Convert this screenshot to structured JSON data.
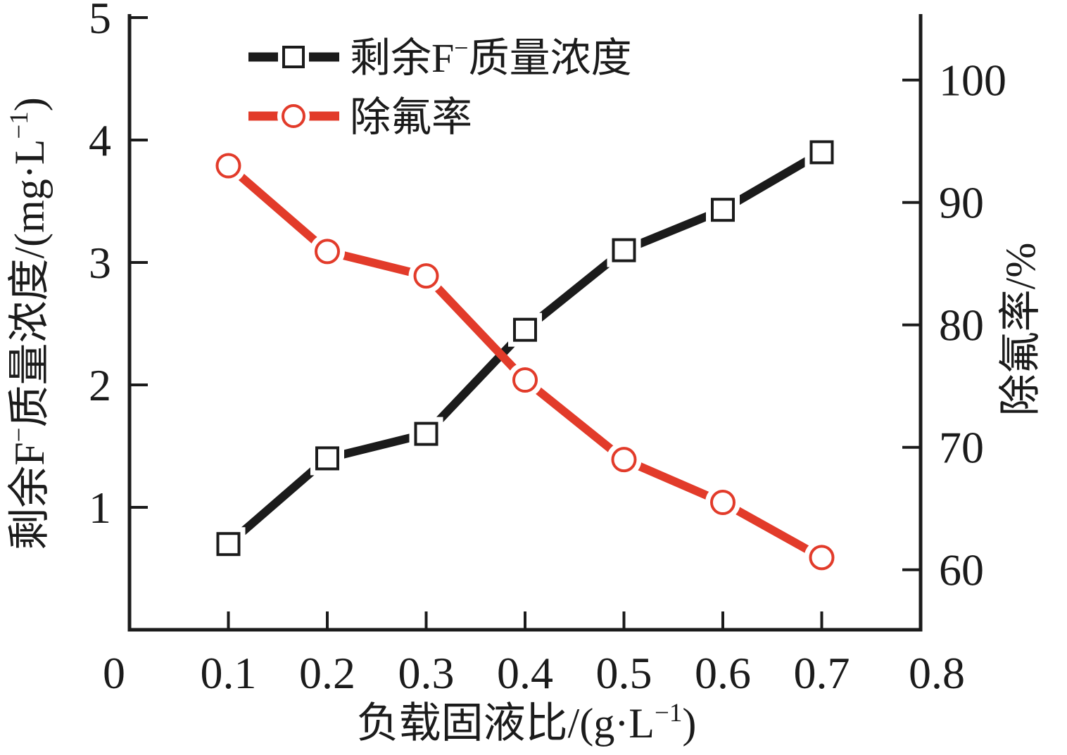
{
  "figure": {
    "background": "#ffffff",
    "black": "#1b1b1b",
    "red": "#e23b2a"
  },
  "legend": {
    "items": [
      {
        "id": "residual_fluoride",
        "label": "剩余F⁻质量浓度",
        "label_parts": [
          {
            "t": "剩余F"
          },
          {
            "t": "−",
            "sup": true
          },
          {
            "t": "质量浓度"
          }
        ],
        "color": "#1b1b1b",
        "marker": "square"
      },
      {
        "id": "fluoride_removal",
        "label": "除氟率",
        "label_parts": [
          {
            "t": "除氟率"
          }
        ],
        "color": "#e23b2a",
        "marker": "circle"
      }
    ]
  },
  "chart_data": {
    "type": "line",
    "x": [
      0.1,
      0.2,
      0.3,
      0.4,
      0.5,
      0.6,
      0.7
    ],
    "series": [
      {
        "id": "residual_fluoride",
        "name": "剩余F⁻质量浓度",
        "axis": "left",
        "color": "#1b1b1b",
        "marker": "square",
        "values": [
          0.7,
          1.4,
          1.6,
          2.45,
          3.1,
          3.43,
          3.9
        ]
      },
      {
        "id": "fluoride_removal",
        "name": "除氟率",
        "axis": "right",
        "color": "#e23b2a",
        "marker": "circle",
        "values": [
          93,
          86,
          84,
          75.5,
          69,
          65.5,
          61
        ]
      }
    ],
    "x_axis": {
      "label": "负载固液比/(g·L⁻¹)",
      "label_parts": [
        {
          "t": "负载固液比/(g·L"
        },
        {
          "t": "−1",
          "sup": true
        },
        {
          "t": ")"
        }
      ],
      "min": 0,
      "max": 0.8,
      "tick_marks": [
        0.1,
        0.2,
        0.3,
        0.4,
        0.5,
        0.6,
        0.7
      ],
      "tick_labels": [
        {
          "v": 0,
          "text": "0"
        },
        {
          "v": 0.1,
          "text": "0.1"
        },
        {
          "v": 0.2,
          "text": "0.2"
        },
        {
          "v": 0.3,
          "text": "0.3"
        },
        {
          "v": 0.4,
          "text": "0.4"
        },
        {
          "v": 0.5,
          "text": "0.5"
        },
        {
          "v": 0.6,
          "text": "0.6"
        },
        {
          "v": 0.7,
          "text": "0.7"
        },
        {
          "v": 0.8,
          "text": "0.8"
        }
      ]
    },
    "left_axis": {
      "label": "剩余F⁻质量浓度/(mg·L⁻¹)",
      "label_parts": [
        {
          "t": "剩余F"
        },
        {
          "t": "−",
          "sup": true
        },
        {
          "t": "质量浓度/(mg·L"
        },
        {
          "t": "−1",
          "sup": true
        },
        {
          "t": ")"
        }
      ],
      "min": 0,
      "max": 5,
      "tick_labels": [
        {
          "v": 1,
          "text": "1"
        },
        {
          "v": 2,
          "text": "2"
        },
        {
          "v": 3,
          "text": "3"
        },
        {
          "v": 4,
          "text": "4"
        },
        {
          "v": 5,
          "text": "5"
        }
      ]
    },
    "right_axis": {
      "label": "除氟率/%",
      "label_parts": [
        {
          "t": "除氟率/%"
        }
      ],
      "min": 55.1,
      "max": 105.1,
      "tick_labels": [
        {
          "v": 60,
          "text": "60"
        },
        {
          "v": 70,
          "text": "70"
        },
        {
          "v": 80,
          "text": "80"
        },
        {
          "v": 90,
          "text": "90"
        },
        {
          "v": 100,
          "text": "100"
        }
      ]
    },
    "grid": false,
    "legend_position": "inside-top-left"
  }
}
